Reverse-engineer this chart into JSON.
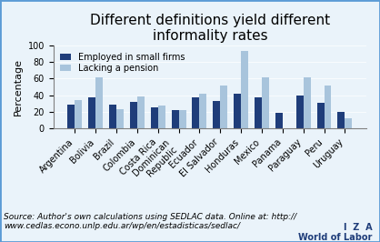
{
  "title": "Different definitions yield different\ninformality rates",
  "categories": [
    "Argentina",
    "Bolivia",
    "Brazil",
    "Colombia",
    "Costa Rica",
    "Dominican\nRepublic",
    "Ecuador",
    "El Salvador",
    "Honduras",
    "Mexico",
    "Panama",
    "Paraguay",
    "Peru",
    "Uruguay"
  ],
  "small_firms": [
    29,
    37,
    29,
    32,
    25,
    22,
    37,
    33,
    42,
    37,
    19,
    40,
    31,
    20
  ],
  "lacking_pension": [
    34,
    61,
    23,
    38,
    28,
    22,
    42,
    52,
    93,
    62,
    0,
    61,
    52,
    12
  ],
  "color_dark": "#1F3D7A",
  "color_light": "#A8C4DC",
  "ylabel": "Percentage",
  "ylim": [
    0,
    100
  ],
  "yticks": [
    0,
    20,
    40,
    60,
    80,
    100
  ],
  "legend_labels": [
    "Employed in small firms",
    "Lacking a pension"
  ],
  "source_text": "Source: Author's own calculations using SEDLAC data. Online at: http://\nwww.cedlas.econo.unlp.edu.ar/wp/en/estadisticas/sedlac/",
  "iza_text": "I  Z  A\nWorld of Labor",
  "bg_color": "#EAF3FA",
  "border_color": "#5B9BD5",
  "title_fontsize": 11,
  "axis_fontsize": 8,
  "tick_fontsize": 7,
  "source_fontsize": 6.5,
  "iza_fontsize": 7
}
